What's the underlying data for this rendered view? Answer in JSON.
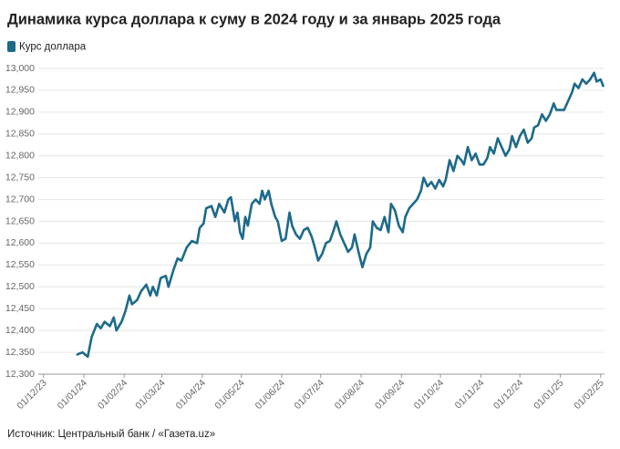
{
  "chart_data": {
    "type": "line",
    "title": "Динамика курса доллара к суму в 2024 году и за январь 2025 года",
    "source": "Источник: Центральный банк / «Газета.uz»",
    "legend": "top-left",
    "grid": true,
    "xlim": [
      "2023-11-27",
      "2025-02-04"
    ],
    "xticks": [
      {
        "value": "2023-12-01",
        "label": "01/12/23"
      },
      {
        "value": "2024-01-01",
        "label": "01/01/24"
      },
      {
        "value": "2024-02-01",
        "label": "01/02/24"
      },
      {
        "value": "2024-03-01",
        "label": "01/03/24"
      },
      {
        "value": "2024-04-01",
        "label": "01/04/24"
      },
      {
        "value": "2024-05-01",
        "label": "01/05/24"
      },
      {
        "value": "2024-06-01",
        "label": "01/06/24"
      },
      {
        "value": "2024-07-01",
        "label": "01/07/24"
      },
      {
        "value": "2024-08-01",
        "label": "01/08/24"
      },
      {
        "value": "2024-09-01",
        "label": "01/09/24"
      },
      {
        "value": "2024-10-01",
        "label": "01/10/24"
      },
      {
        "value": "2024-11-01",
        "label": "01/11/24"
      },
      {
        "value": "2024-12-01",
        "label": "01/12/24"
      },
      {
        "value": "2025-01-01",
        "label": "01/01/25"
      },
      {
        "value": "2025-02-01",
        "label": "01/02/25"
      }
    ],
    "ylim": [
      12300,
      13000
    ],
    "yticks": [
      {
        "value": 12300,
        "label": "12,300"
      },
      {
        "value": 12350,
        "label": "12,350"
      },
      {
        "value": 12400,
        "label": "12,400"
      },
      {
        "value": 12450,
        "label": "12,450"
      },
      {
        "value": 12500,
        "label": "12,500"
      },
      {
        "value": 12550,
        "label": "12,550"
      },
      {
        "value": 12600,
        "label": "12,600"
      },
      {
        "value": 12650,
        "label": "12,650"
      },
      {
        "value": 12700,
        "label": "12,700"
      },
      {
        "value": 12750,
        "label": "12,750"
      },
      {
        "value": 12800,
        "label": "12,800"
      },
      {
        "value": 12850,
        "label": "12,850"
      },
      {
        "value": 12900,
        "label": "12,900"
      },
      {
        "value": 12950,
        "label": "12,950"
      },
      {
        "value": 13000,
        "label": "13,000"
      }
    ],
    "x": [
      "2023-12-27",
      "2023-12-31",
      "2024-01-04",
      "2024-01-07",
      "2024-01-11",
      "2024-01-14",
      "2024-01-17",
      "2024-01-21",
      "2024-01-24",
      "2024-01-26",
      "2024-01-30",
      "2024-02-02",
      "2024-02-05",
      "2024-02-07",
      "2024-02-11",
      "2024-02-14",
      "2024-02-18",
      "2024-02-21",
      "2024-02-23",
      "2024-02-26",
      "2024-02-29",
      "2024-03-04",
      "2024-03-06",
      "2024-03-10",
      "2024-03-13",
      "2024-03-16",
      "2024-03-20",
      "2024-03-24",
      "2024-03-28",
      "2024-03-30",
      "2024-04-02",
      "2024-04-04",
      "2024-04-08",
      "2024-04-11",
      "2024-04-14",
      "2024-04-18",
      "2024-04-21",
      "2024-04-23",
      "2024-04-26",
      "2024-04-28",
      "2024-04-30",
      "2024-05-02",
      "2024-05-04",
      "2024-05-06",
      "2024-05-09",
      "2024-05-12",
      "2024-05-15",
      "2024-05-17",
      "2024-05-19",
      "2024-05-22",
      "2024-05-24",
      "2024-05-27",
      "2024-05-29",
      "2024-06-01",
      "2024-06-04",
      "2024-06-07",
      "2024-06-09",
      "2024-06-12",
      "2024-06-15",
      "2024-06-18",
      "2024-06-21",
      "2024-06-24",
      "2024-06-26",
      "2024-06-29",
      "2024-07-02",
      "2024-07-05",
      "2024-07-08",
      "2024-07-11",
      "2024-07-13",
      "2024-07-16",
      "2024-07-19",
      "2024-07-22",
      "2024-07-25",
      "2024-07-27",
      "2024-07-30",
      "2024-08-02",
      "2024-08-05",
      "2024-08-08",
      "2024-08-10",
      "2024-08-13",
      "2024-08-16",
      "2024-08-19",
      "2024-08-22",
      "2024-08-24",
      "2024-08-27",
      "2024-08-30",
      "2024-09-02",
      "2024-09-04",
      "2024-09-07",
      "2024-09-10",
      "2024-09-13",
      "2024-09-16",
      "2024-09-18",
      "2024-09-21",
      "2024-09-24",
      "2024-09-27",
      "2024-09-30",
      "2024-10-03",
      "2024-10-05",
      "2024-10-08",
      "2024-10-11",
      "2024-10-14",
      "2024-10-17",
      "2024-10-19",
      "2024-10-22",
      "2024-10-25",
      "2024-10-28",
      "2024-10-31",
      "2024-11-03",
      "2024-11-06",
      "2024-11-08",
      "2024-11-11",
      "2024-11-14",
      "2024-11-17",
      "2024-11-20",
      "2024-11-23",
      "2024-11-25",
      "2024-11-28",
      "2024-12-01",
      "2024-12-04",
      "2024-12-07",
      "2024-12-10",
      "2024-12-12",
      "2024-12-15",
      "2024-12-18",
      "2024-12-21",
      "2024-12-24",
      "2024-12-27",
      "2024-12-29",
      "2025-01-01",
      "2025-01-04",
      "2025-01-07",
      "2025-01-10",
      "2025-01-12",
      "2025-01-15",
      "2025-01-18",
      "2025-01-21",
      "2025-01-24",
      "2025-01-27",
      "2025-01-29",
      "2025-02-01",
      "2025-02-03"
    ],
    "series": [
      {
        "name": "Курс доллара",
        "color": "#1d6a8a",
        "values": [
          12345,
          12350,
          12340,
          12385,
          12415,
          12405,
          12420,
          12410,
          12430,
          12400,
          12420,
          12445,
          12480,
          12460,
          12470,
          12490,
          12505,
          12480,
          12500,
          12480,
          12520,
          12525,
          12500,
          12540,
          12565,
          12560,
          12590,
          12605,
          12600,
          12635,
          12645,
          12680,
          12685,
          12660,
          12690,
          12670,
          12700,
          12705,
          12650,
          12670,
          12625,
          12610,
          12660,
          12640,
          12690,
          12700,
          12690,
          12720,
          12700,
          12720,
          12690,
          12660,
          12650,
          12605,
          12610,
          12670,
          12640,
          12620,
          12610,
          12630,
          12635,
          12615,
          12595,
          12560,
          12575,
          12600,
          12605,
          12630,
          12650,
          12620,
          12600,
          12580,
          12590,
          12620,
          12580,
          12545,
          12575,
          12590,
          12650,
          12635,
          12630,
          12660,
          12625,
          12690,
          12675,
          12640,
          12625,
          12660,
          12680,
          12690,
          12700,
          12720,
          12750,
          12730,
          12740,
          12725,
          12745,
          12730,
          12745,
          12790,
          12765,
          12800,
          12790,
          12780,
          12820,
          12790,
          12805,
          12780,
          12780,
          12795,
          12820,
          12805,
          12840,
          12820,
          12800,
          12815,
          12845,
          12820,
          12845,
          12860,
          12830,
          12840,
          12865,
          12870,
          12895,
          12880,
          12895,
          12920,
          12905,
          12905,
          12905,
          12925,
          12945,
          12965,
          12955,
          12975,
          12965,
          12975,
          12990,
          12970,
          12975,
          12960
        ]
      }
    ]
  }
}
